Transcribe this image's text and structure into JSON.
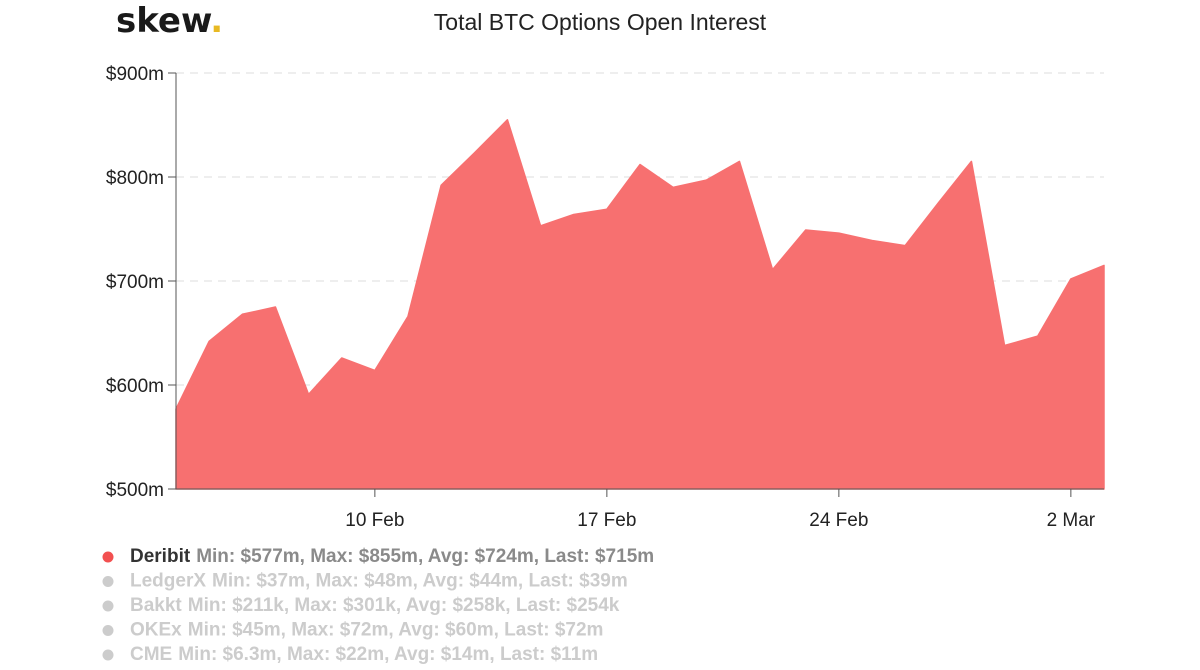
{
  "brand": {
    "name": "skew",
    "dot": ".",
    "dot_color": "#e8b923"
  },
  "chart_data": {
    "type": "area",
    "title": "Total BTC Options Open Interest",
    "xlabel": "",
    "ylabel": "",
    "x_tick_labels": [
      "10 Feb",
      "17 Feb",
      "24 Feb",
      "2 Mar"
    ],
    "x_tick_dates": [
      "2020-02-10",
      "2020-02-17",
      "2020-02-24",
      "2020-03-02"
    ],
    "y_tick_labels": [
      "$500m",
      "$600m",
      "$700m",
      "$800m",
      "$900m"
    ],
    "y_tick_values": [
      500,
      600,
      700,
      800,
      900
    ],
    "ylim": [
      500,
      900
    ],
    "xlim": [
      "2020-02-04",
      "2020-03-03"
    ],
    "y_unit": "$m",
    "grid": "horizontal dashed",
    "legend_placement": "bottom-left",
    "series": [
      {
        "name": "Deribit",
        "color": "#f77070",
        "visible": true,
        "stats": "Min: $577m, Max: $855m, Avg: $724m, Last: $715m",
        "x": [
          "2020-02-04",
          "2020-02-05",
          "2020-02-06",
          "2020-02-07",
          "2020-02-08",
          "2020-02-09",
          "2020-02-10",
          "2020-02-11",
          "2020-02-12",
          "2020-02-13",
          "2020-02-14",
          "2020-02-15",
          "2020-02-16",
          "2020-02-17",
          "2020-02-18",
          "2020-02-19",
          "2020-02-20",
          "2020-02-21",
          "2020-02-22",
          "2020-02-23",
          "2020-02-24",
          "2020-02-25",
          "2020-02-26",
          "2020-02-27",
          "2020-02-28",
          "2020-02-29",
          "2020-03-01",
          "2020-03-02",
          "2020-03-03"
        ],
        "values": [
          577,
          642,
          668,
          675,
          591,
          626,
          614,
          666,
          792,
          823,
          855,
          753,
          764,
          769,
          812,
          790,
          797,
          815,
          711,
          749,
          746,
          739,
          734,
          775,
          815,
          638,
          647,
          702,
          715
        ]
      },
      {
        "name": "LedgerX",
        "color": "#cccccc",
        "visible": false,
        "stats": "Min: $37m, Max: $48m, Avg: $44m, Last: $39m"
      },
      {
        "name": "Bakkt",
        "color": "#cccccc",
        "visible": false,
        "stats": "Min: $211k, Max: $301k, Avg: $258k, Last: $254k"
      },
      {
        "name": "OKEx",
        "color": "#cccccc",
        "visible": false,
        "stats": "Min: $45m, Max: $72m, Avg: $60m, Last: $72m"
      },
      {
        "name": "CME",
        "color": "#cccccc",
        "visible": false,
        "stats": "Min: $6.3m, Max: $22m, Avg: $14m, Last: $11m"
      }
    ]
  }
}
